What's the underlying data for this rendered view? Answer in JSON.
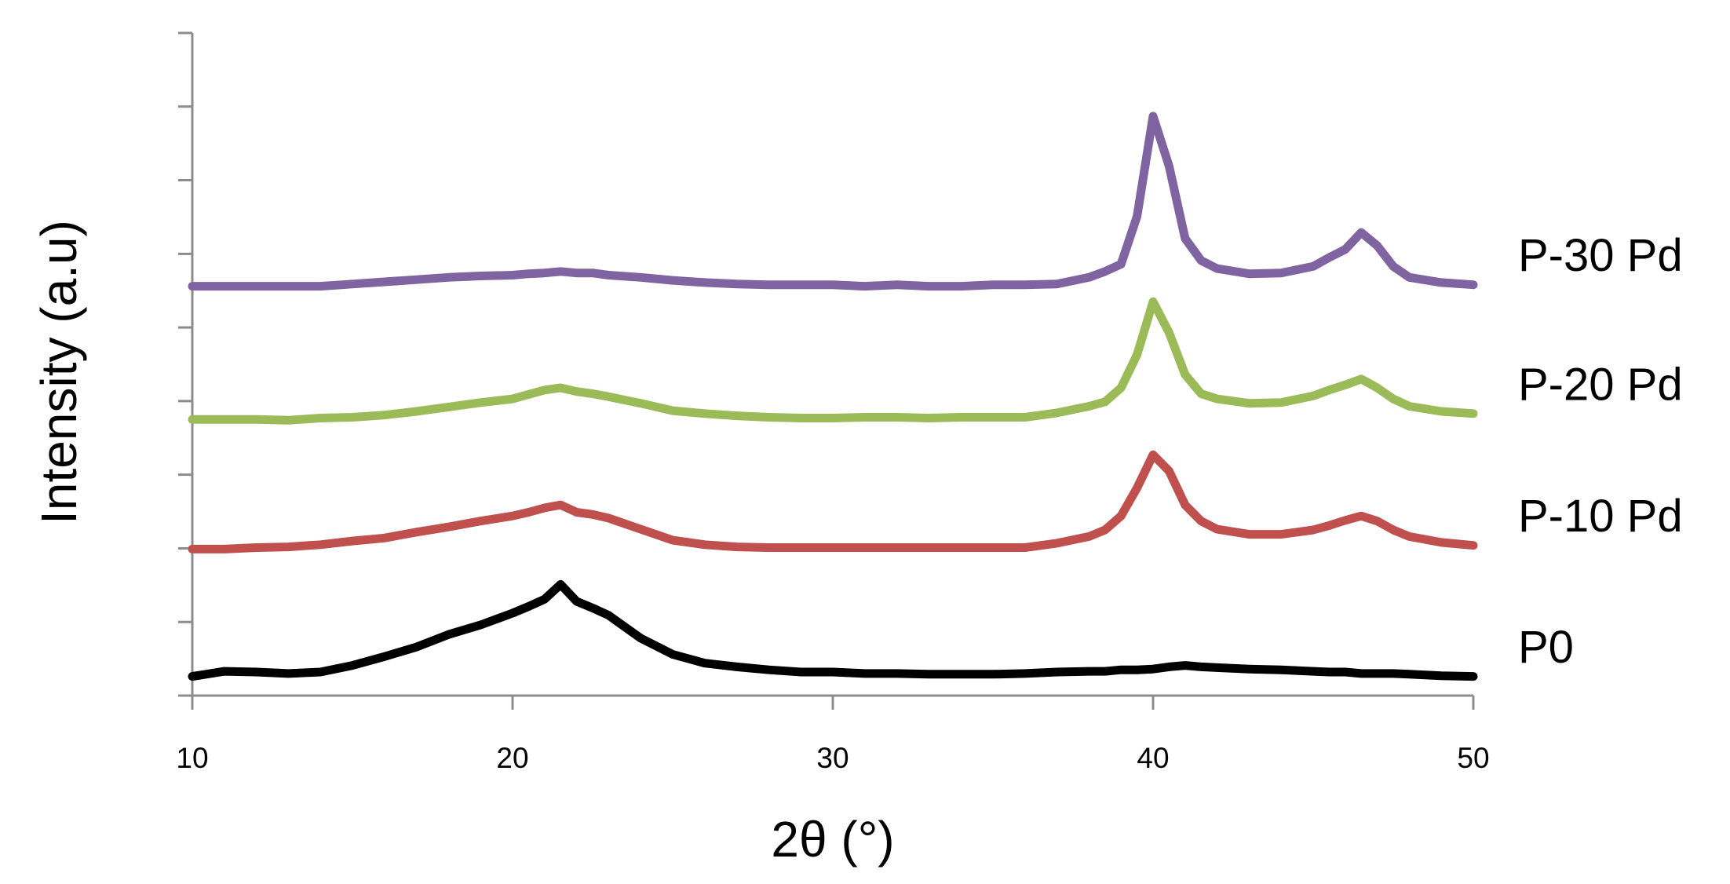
{
  "chart_data": {
    "type": "line",
    "xlabel": "2θ (°)",
    "ylabel": "Intensity (a.u)",
    "x": [
      10,
      11,
      12,
      13,
      14,
      15,
      16,
      17,
      18,
      19,
      20,
      20.5,
      21,
      21.5,
      22,
      22.5,
      23,
      24,
      25,
      26,
      27,
      28,
      29,
      30,
      31,
      32,
      33,
      34,
      35,
      36,
      37,
      38,
      38.5,
      39,
      39.5,
      40,
      40.5,
      41,
      41.5,
      42,
      43,
      44,
      45,
      45.5,
      46,
      46.5,
      47,
      47.5,
      48,
      49,
      50
    ],
    "series": [
      {
        "name": "P0",
        "color": "#000000",
        "values": [
          0.26,
          0.33,
          0.32,
          0.3,
          0.32,
          0.41,
          0.53,
          0.66,
          0.83,
          0.96,
          1.12,
          1.21,
          1.31,
          1.51,
          1.28,
          1.19,
          1.09,
          0.78,
          0.56,
          0.44,
          0.39,
          0.35,
          0.32,
          0.32,
          0.3,
          0.3,
          0.29,
          0.29,
          0.29,
          0.3,
          0.32,
          0.33,
          0.33,
          0.35,
          0.35,
          0.36,
          0.39,
          0.41,
          0.39,
          0.38,
          0.36,
          0.35,
          0.33,
          0.32,
          0.32,
          0.3,
          0.3,
          0.3,
          0.29,
          0.27,
          0.26
        ]
      },
      {
        "name": "P-10 Pd",
        "color": "#c0504d",
        "values": [
          1.99,
          1.99,
          2.01,
          2.02,
          2.05,
          2.1,
          2.14,
          2.22,
          2.29,
          2.37,
          2.44,
          2.49,
          2.55,
          2.59,
          2.49,
          2.46,
          2.41,
          2.26,
          2.11,
          2.05,
          2.02,
          2.01,
          2.01,
          2.01,
          2.01,
          2.01,
          2.01,
          2.01,
          2.01,
          2.01,
          2.07,
          2.16,
          2.25,
          2.44,
          2.82,
          3.27,
          3.05,
          2.59,
          2.37,
          2.26,
          2.19,
          2.19,
          2.25,
          2.31,
          2.38,
          2.44,
          2.37,
          2.25,
          2.16,
          2.08,
          2.04
        ]
      },
      {
        "name": "P-20 Pd",
        "color": "#9bbb59",
        "values": [
          3.75,
          3.75,
          3.75,
          3.74,
          3.77,
          3.78,
          3.81,
          3.86,
          3.92,
          3.98,
          4.03,
          4.09,
          4.15,
          4.18,
          4.13,
          4.1,
          4.06,
          3.97,
          3.87,
          3.83,
          3.8,
          3.78,
          3.77,
          3.77,
          3.78,
          3.78,
          3.77,
          3.78,
          3.78,
          3.78,
          3.84,
          3.93,
          3.99,
          4.18,
          4.63,
          5.35,
          4.93,
          4.36,
          4.1,
          4.03,
          3.97,
          3.98,
          4.07,
          4.15,
          4.22,
          4.3,
          4.18,
          4.03,
          3.93,
          3.86,
          3.83
        ]
      },
      {
        "name": "P-30 Pd",
        "color": "#8064a2",
        "values": [
          5.56,
          5.56,
          5.56,
          5.56,
          5.56,
          5.59,
          5.62,
          5.65,
          5.68,
          5.7,
          5.71,
          5.73,
          5.74,
          5.76,
          5.74,
          5.74,
          5.71,
          5.68,
          5.64,
          5.61,
          5.59,
          5.58,
          5.58,
          5.58,
          5.56,
          5.58,
          5.56,
          5.56,
          5.58,
          5.58,
          5.59,
          5.68,
          5.76,
          5.86,
          6.51,
          7.87,
          7.19,
          6.21,
          5.91,
          5.8,
          5.73,
          5.74,
          5.83,
          5.95,
          6.06,
          6.29,
          6.11,
          5.83,
          5.68,
          5.61,
          5.58
        ]
      }
    ],
    "xlim": [
      10,
      50
    ],
    "xticks": [
      10,
      20,
      30,
      40,
      50
    ],
    "ylim": [
      0,
      9
    ],
    "yticks": [
      0,
      1,
      2,
      3,
      4,
      5,
      6,
      7,
      8,
      9
    ],
    "grid": false
  }
}
